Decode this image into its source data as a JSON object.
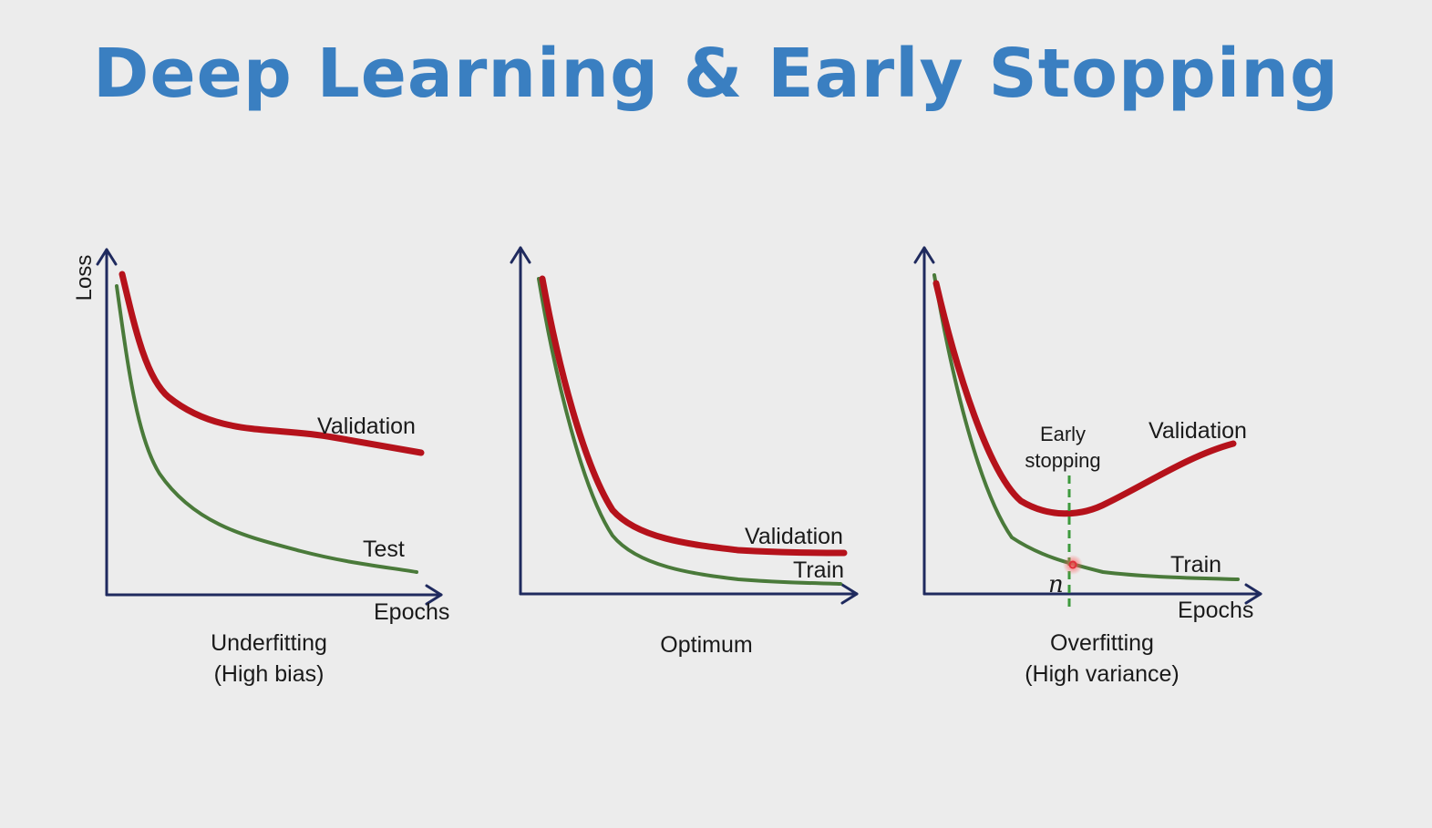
{
  "slide": {
    "title": "Deep Learning & Early Stopping"
  },
  "colors": {
    "title": "#3a7fc1",
    "validation_curve": "#b5121b",
    "train_curve": "#4a7a3a",
    "axis": "#1f2a5e",
    "marker": "#e0303a"
  },
  "panels": [
    {
      "id": "underfitting",
      "y_axis_label": "Loss",
      "x_axis_label": "Epochs",
      "upper_curve_label": "Validation",
      "lower_curve_label": "Test",
      "caption_line1": "Underfitting",
      "caption_line2": "(High bias)"
    },
    {
      "id": "optimum",
      "upper_curve_label": "Validation",
      "lower_curve_label": "Train",
      "caption_line1": "Optimum"
    },
    {
      "id": "overfitting",
      "x_axis_label": "Epochs",
      "upper_curve_label": "Validation",
      "lower_curve_label": "Train",
      "early_stopping_line1": "Early",
      "early_stopping_line2": "stopping",
      "stop_epoch_label": "n",
      "caption_line1": "Overfitting",
      "caption_line2": "(High variance)"
    }
  ]
}
